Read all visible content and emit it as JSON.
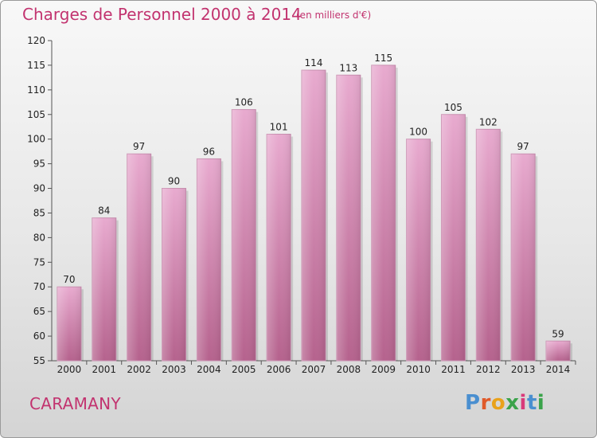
{
  "header": {
    "title": "Charges de Personnel 2000 à 2014",
    "subtitle": "(en milliers d'€)"
  },
  "footer": {
    "commune": "CARAMANY",
    "logo_letters": [
      "P",
      "r",
      "o",
      "x",
      "i",
      "t",
      "i"
    ]
  },
  "colors": {
    "accent": "#c2336f",
    "bar_top": "#e8aacf",
    "bar_bottom": "#b5628d",
    "logo": [
      "#4a8fd0",
      "#e05a2a",
      "#e9a21b",
      "#3aa34a",
      "#d93a7a",
      "#4a8fd0",
      "#3aa34a"
    ]
  },
  "chart_data": {
    "type": "bar",
    "title": "Charges de Personnel 2000 à 2014",
    "subtitle": "(en milliers d'€)",
    "xlabel": "",
    "ylabel": "",
    "categories": [
      "2000",
      "2001",
      "2002",
      "2003",
      "2004",
      "2005",
      "2006",
      "2007",
      "2008",
      "2009",
      "2010",
      "2011",
      "2012",
      "2013",
      "2014"
    ],
    "values": [
      70,
      84,
      97,
      90,
      96,
      106,
      101,
      114,
      113,
      115,
      100,
      105,
      102,
      97,
      59
    ],
    "ylim": [
      55,
      120
    ],
    "yticks": [
      55,
      60,
      65,
      70,
      75,
      80,
      85,
      90,
      95,
      100,
      105,
      110,
      115,
      120
    ],
    "grid": false,
    "data_labels": true
  }
}
